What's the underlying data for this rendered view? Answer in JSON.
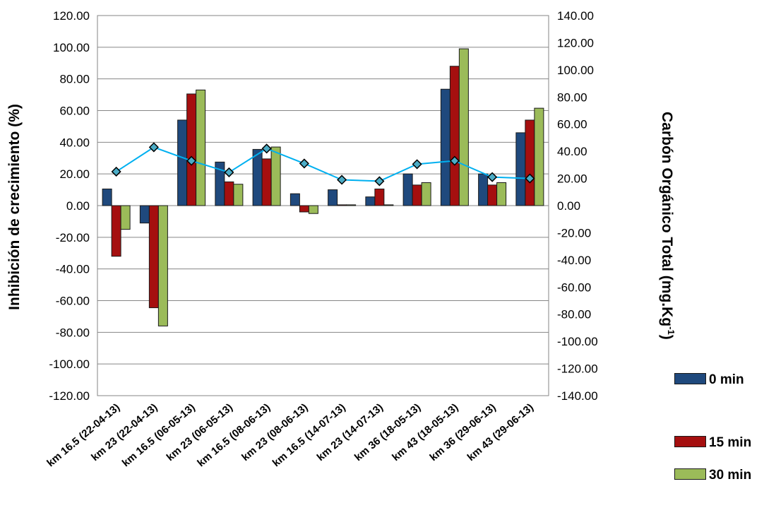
{
  "chart_data": {
    "type": "bar",
    "categories": [
      "km 16.5 (22-04-13)",
      "km 23 (22-04-13)",
      "km 16.5 (06-05-13)",
      "km 23 (06-05-13)",
      "km 16.5 (08-06-13)",
      "km 23 (08-06-13)",
      "km 16.5 (14-07-13)",
      "km 23 (14-07-13)",
      "km 36 (18-05-13)",
      "km 43 (18-05-13)",
      "km 36 (29-06-13)",
      "km 43 (29-06-13)"
    ],
    "series": [
      {
        "name": "0 min",
        "color": "#1f497d",
        "values": [
          10.5,
          -11.0,
          54.0,
          27.5,
          35.5,
          7.5,
          10.0,
          5.5,
          20.0,
          73.5,
          20.0,
          46.0
        ]
      },
      {
        "name": "15 min",
        "color": "#a50f0f",
        "values": [
          -32.0,
          -64.5,
          70.5,
          15.0,
          29.5,
          -4.0,
          0.5,
          10.5,
          13.0,
          88.0,
          13.0,
          54.0
        ]
      },
      {
        "name": "30 min",
        "color": "#9bbb59",
        "values": [
          -15.0,
          -76.0,
          73.0,
          13.5,
          37.0,
          -5.0,
          0.5,
          0.5,
          14.5,
          99.0,
          14.5,
          61.5
        ]
      }
    ],
    "line_series": {
      "axis": "right",
      "color": "#00b0f0",
      "marker_color": "#4bacc6",
      "values": [
        25.0,
        43.0,
        33.0,
        24.5,
        42.0,
        31.0,
        19.0,
        18.0,
        30.5,
        33.0,
        21.0,
        20.0
      ]
    },
    "ylabel": "Inhibición de crecimiento (%)",
    "y2label_main": "Carbón Orgánico Total (mg.Kg",
    "y2label_sup": "-1",
    "y2label_end": ")",
    "ylim": [
      -120,
      120
    ],
    "y_ticks": [
      "120.00",
      "100.00",
      "80.00",
      "60.00",
      "40.00",
      "20.00",
      "0.00",
      "-20.00",
      "-40.00",
      "-60.00",
      "-80.00",
      "-100.00",
      "-120.00"
    ],
    "y2lim": [
      -140,
      140
    ],
    "y2_ticks": [
      "140.00",
      "120.00",
      "100.00",
      "80.00",
      "60.00",
      "40.00",
      "20.00",
      "0.00",
      "-20.00",
      "-40.00",
      "-60.00",
      "-80.00",
      "-100.00",
      "-120.00",
      "-140.00"
    ],
    "legend": [
      {
        "label": "0 min"
      },
      {
        "label": "15 min"
      },
      {
        "label": "30 min"
      }
    ],
    "legend_position": "bottom-right",
    "grid": true
  }
}
